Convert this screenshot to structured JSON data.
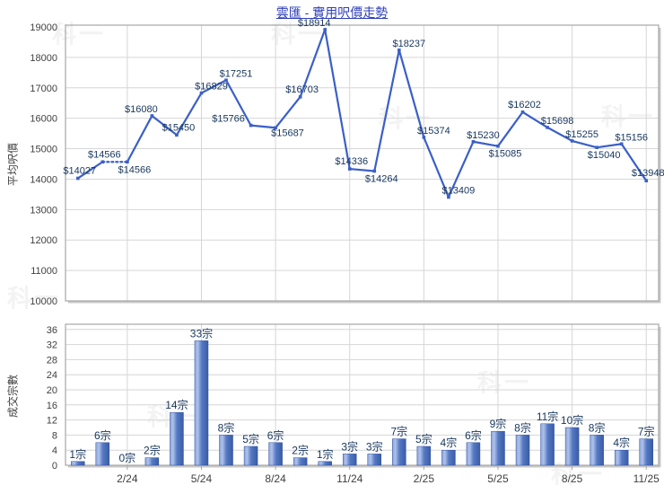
{
  "title": "雲匯 - 實用呎價走勢",
  "watermark": "科一",
  "colors": {
    "line": "#3A5FC8",
    "data_label": "#17365D",
    "bar_light": "#AFC2EA",
    "bar_mid": "#5579C4",
    "bar_dark": "#3A5CA6",
    "bar_edge": "#8AA4DB",
    "bar_stroke": "#2F4F9C",
    "grid": "#D6D6D6",
    "plot_border": "#A6A6A6",
    "plot_shadow": "#C9C9C9",
    "tick_text": "#3F3F3F",
    "title_text": "#2F3FBA"
  },
  "chart_data": [
    {
      "type": "line",
      "title": "雲匯 - 實用呎價走勢",
      "ylabel": "平均呎價",
      "ylim": [
        10000,
        19000
      ],
      "ytick_step": 1000,
      "yticks": [
        10000,
        11000,
        12000,
        13000,
        14000,
        15000,
        16000,
        17000,
        18000,
        19000
      ],
      "grid": true,
      "legend": false,
      "xticks": {
        "labels": [
          "2/24",
          "5/24",
          "8/24",
          "11/24",
          "2/25",
          "5/25",
          "8/25",
          "11/25"
        ],
        "slot_indices": [
          2,
          5,
          8,
          11,
          14,
          17,
          20,
          23
        ],
        "labels_shown_on_this_plot": false
      },
      "values": [
        14027,
        14566,
        14566,
        16080,
        15450,
        16829,
        17251,
        15766,
        15687,
        16703,
        18914,
        14336,
        14264,
        18237,
        15374,
        13409,
        15230,
        15085,
        16202,
        15698,
        15255,
        15040,
        15156,
        13948
      ],
      "point_labels": [
        "$14027",
        "$14566",
        "$14566",
        "$16080",
        "$15450",
        "$16829",
        "$17251",
        "$15766",
        "$15687",
        "$16703",
        "$18914",
        "$14336",
        "$14264",
        "$18237",
        "$15374",
        "$13409",
        "$15230",
        "$15085",
        "$16202",
        "$15698",
        "$15255",
        "$15040",
        "$15156",
        "$13948"
      ],
      "label_pos": [
        "above",
        "above",
        "below",
        "above-sl",
        "above",
        "above-r",
        "above-r",
        "above-l",
        "below-r",
        "above",
        "above-sl",
        "above",
        "below",
        "above-r",
        "above-r",
        "above-r",
        "above-r",
        "below",
        "above",
        "above-r",
        "above-r",
        "below",
        "above-r",
        "above"
      ],
      "dashed_segment_start_indices": [
        1
      ]
    },
    {
      "type": "bar",
      "ylabel": "成交宗數",
      "ylim": [
        0,
        36
      ],
      "ytick_step": 4,
      "yticks": [
        0,
        4,
        8,
        12,
        16,
        20,
        24,
        28,
        32,
        36
      ],
      "grid": true,
      "legend": false,
      "xticks": {
        "labels": [
          "2/24",
          "5/24",
          "8/24",
          "11/24",
          "2/25",
          "5/25",
          "8/25",
          "11/25"
        ],
        "slot_indices": [
          2,
          5,
          8,
          11,
          14,
          17,
          20,
          23
        ]
      },
      "values": [
        1,
        6,
        0,
        2,
        14,
        33,
        8,
        5,
        6,
        2,
        1,
        3,
        3,
        7,
        5,
        4,
        6,
        9,
        8,
        11,
        10,
        8,
        4,
        7
      ],
      "point_labels": [
        "1宗",
        "6宗",
        "0宗",
        "2宗",
        "14宗",
        "33宗",
        "8宗",
        "5宗",
        "6宗",
        "2宗",
        "1宗",
        "3宗",
        "3宗",
        "7宗",
        "5宗",
        "4宗",
        "6宗",
        "9宗",
        "8宗",
        "11宗",
        "10宗",
        "8宗",
        "4宗",
        "7宗"
      ]
    }
  ]
}
